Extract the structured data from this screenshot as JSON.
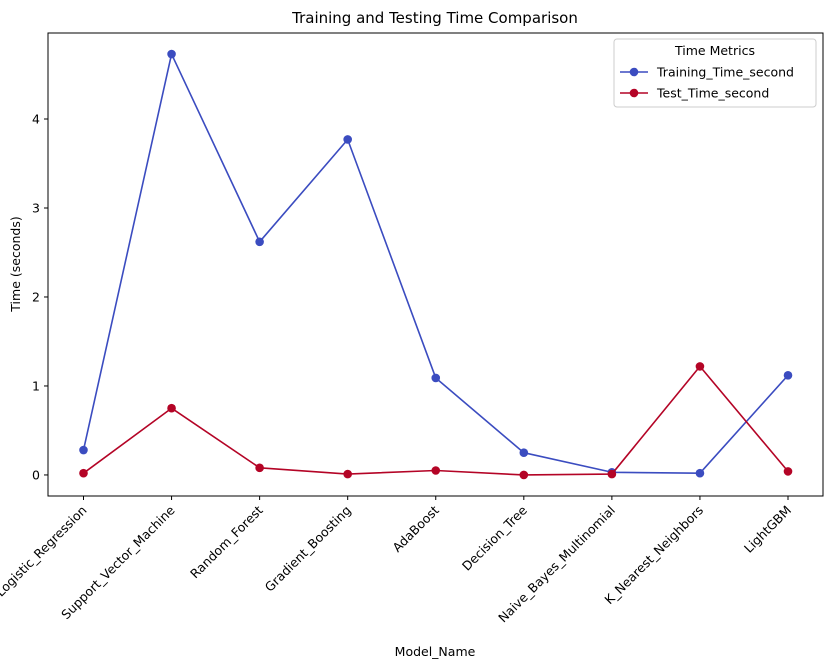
{
  "chart_data": {
    "type": "line",
    "title": "Training and Testing Time Comparison",
    "xlabel": "Model_Name",
    "ylabel": "Time (seconds)",
    "categories": [
      "Logistic_Regression",
      "Support_Vector_Machine",
      "Random_Forest",
      "Gradient_Boosting",
      "AdaBoost",
      "Decision_Tree",
      "Naive_Bayes_Multinomial",
      "K_Nearest_Neighbors",
      "LightGBM"
    ],
    "series": [
      {
        "name": "Training_Time_second",
        "color": "#3b4cc0",
        "values": [
          0.28,
          4.73,
          2.62,
          3.77,
          1.09,
          0.25,
          0.03,
          0.02,
          1.12
        ]
      },
      {
        "name": "Test_Time_second",
        "color": "#b40426",
        "values": [
          0.02,
          0.75,
          0.08,
          0.01,
          0.05,
          0.0,
          0.01,
          1.22,
          0.04
        ]
      }
    ],
    "ylim": [
      -0.2365,
      4.9665
    ],
    "yticks": [
      0,
      1,
      2,
      3,
      4
    ],
    "ytick_labels": [
      "0",
      "1",
      "2",
      "3",
      "4"
    ],
    "legend": {
      "title": "Time Metrics",
      "position": "upper right"
    },
    "grid": false,
    "marker": "circle"
  }
}
